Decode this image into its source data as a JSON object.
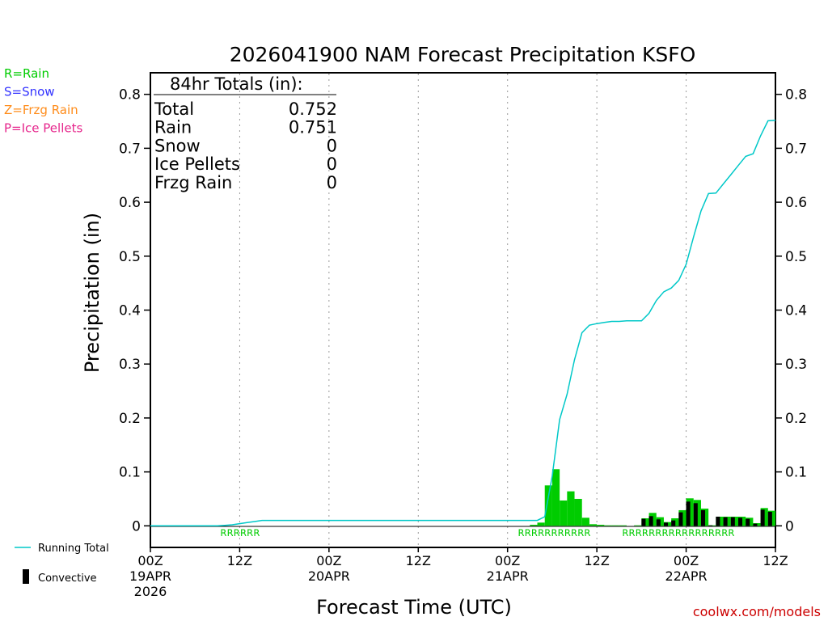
{
  "chart_data": {
    "type": "bar",
    "title": "2026041900 NAM Forecast Precipitation KSFO",
    "xlabel": "Forecast Time (UTC)",
    "ylabel": "Precipitation (in)",
    "xlim": [
      0,
      84
    ],
    "ylim": [
      -0.04,
      0.84
    ],
    "yticks": [
      0,
      0.1,
      0.2,
      0.3,
      0.4,
      0.5,
      0.6,
      0.7,
      0.8
    ],
    "ytick_labels": [
      "0",
      "0.1",
      "0.2",
      "0.3",
      "0.4",
      "0.5",
      "0.6",
      "0.7",
      "0.8"
    ],
    "xticks": [
      {
        "hour": 0,
        "lines": [
          "00Z",
          "19APR",
          "2026"
        ]
      },
      {
        "hour": 12,
        "lines": [
          "12Z"
        ]
      },
      {
        "hour": 24,
        "lines": [
          "00Z",
          "20APR"
        ]
      },
      {
        "hour": 36,
        "lines": [
          "12Z"
        ]
      },
      {
        "hour": 48,
        "lines": [
          "00Z",
          "21APR"
        ]
      },
      {
        "hour": 60,
        "lines": [
          "12Z"
        ]
      },
      {
        "hour": 72,
        "lines": [
          "00Z",
          "22APR"
        ]
      },
      {
        "hour": 84,
        "lines": [
          "12Z"
        ]
      }
    ],
    "grid_vertical_hours": [
      12,
      24,
      36,
      48,
      60,
      72
    ],
    "series": [
      {
        "name": "Running Total",
        "type": "line",
        "color": "#00c8c8",
        "x": [
          0,
          9,
          10,
          11,
          12,
          13,
          14,
          15,
          16,
          48,
          52,
          53,
          54,
          55,
          56,
          57,
          58,
          59,
          60,
          61,
          62,
          63,
          64,
          65,
          66,
          67,
          68,
          69,
          70,
          71,
          72,
          73,
          74,
          75,
          76,
          77,
          78,
          79,
          80,
          81,
          82,
          83,
          84
        ],
        "y": [
          0,
          0,
          0.001,
          0.002,
          0.004,
          0.006,
          0.008,
          0.01,
          0.01,
          0.01,
          0.01,
          0.017,
          0.092,
          0.197,
          0.244,
          0.308,
          0.358,
          0.372,
          0.375,
          0.377,
          0.379,
          0.379,
          0.38,
          0.38,
          0.38,
          0.394,
          0.418,
          0.434,
          0.441,
          0.455,
          0.485,
          0.536,
          0.584,
          0.616,
          0.617,
          0.634,
          0.651,
          0.668,
          0.685,
          0.69,
          0.723,
          0.751,
          0.752
        ]
      },
      {
        "name": "Total Precip (Rain)",
        "type": "bar",
        "color": "#00cc00",
        "x": [
          51.5,
          52.5,
          53.5,
          54.5,
          55.5,
          56.5,
          57.5,
          58.5,
          59.5,
          60.5,
          61.5,
          62.5,
          63.5,
          65.5,
          66.5,
          67.5,
          68.5,
          69.5,
          70.5,
          71.5,
          72.5,
          73.5,
          74.5,
          75.5,
          76.5,
          77.5,
          78.5,
          79.5,
          80.5,
          81.5,
          82.5,
          83.5
        ],
        "y": [
          0.002,
          0.006,
          0.075,
          0.105,
          0.047,
          0.064,
          0.05,
          0.015,
          0.003,
          0.002,
          0.001,
          0.001,
          0.001,
          0.001,
          0.014,
          0.024,
          0.016,
          0.007,
          0.014,
          0.029,
          0.051,
          0.048,
          0.032,
          0.001,
          0.017,
          0.017,
          0.017,
          0.017,
          0.015,
          0.005,
          0.033,
          0.028
        ]
      },
      {
        "name": "Convective",
        "type": "bar",
        "color": "#000000",
        "x": [
          66.5,
          67.5,
          68.5,
          69.5,
          70.5,
          71.5,
          72.5,
          73.5,
          74.5,
          75.5,
          76.5,
          77.5,
          78.5,
          79.5,
          80.5,
          81.5,
          82.5,
          83.5
        ],
        "y": [
          0.013,
          0.018,
          0.012,
          0.006,
          0.01,
          0.025,
          0.045,
          0.042,
          0.029,
          0.001,
          0.017,
          0.016,
          0.016,
          0.015,
          0.013,
          0.004,
          0.03,
          0.026
        ]
      }
    ],
    "ptype_codes": [
      {
        "start_hour": 12,
        "text": "RRRRRR"
      },
      {
        "start_hour": 52,
        "text": "RRRRRRRRRRR"
      },
      {
        "start_hour": 66,
        "text": "RRRRRRRRRRRRRRRRR"
      }
    ],
    "totals_box": {
      "header": "84hr Totals (in):",
      "rows": [
        {
          "label": "Total",
          "value": "0.752"
        },
        {
          "label": "Rain",
          "value": "0.751"
        },
        {
          "label": "Snow",
          "value": "0"
        },
        {
          "label": "Ice Pellets",
          "value": "0"
        },
        {
          "label": "Frzg Rain",
          "value": "0"
        }
      ]
    },
    "ptype_legend": [
      {
        "text": "R=Rain",
        "color": "#00cc00"
      },
      {
        "text": "S=Snow",
        "color": "#3333ff"
      },
      {
        "text": "Z=Frzg Rain",
        "color": "#ff8c1a"
      },
      {
        "text": "P=Ice Pellets",
        "color": "#e6268c"
      }
    ],
    "bottom_legend": [
      {
        "text": "Running Total",
        "kind": "line",
        "color": "#00c8c8"
      },
      {
        "text": "Convective",
        "kind": "bar",
        "color": "#000000"
      }
    ],
    "credit": "coolwx.com/models",
    "credit_color": "#cc0000"
  }
}
